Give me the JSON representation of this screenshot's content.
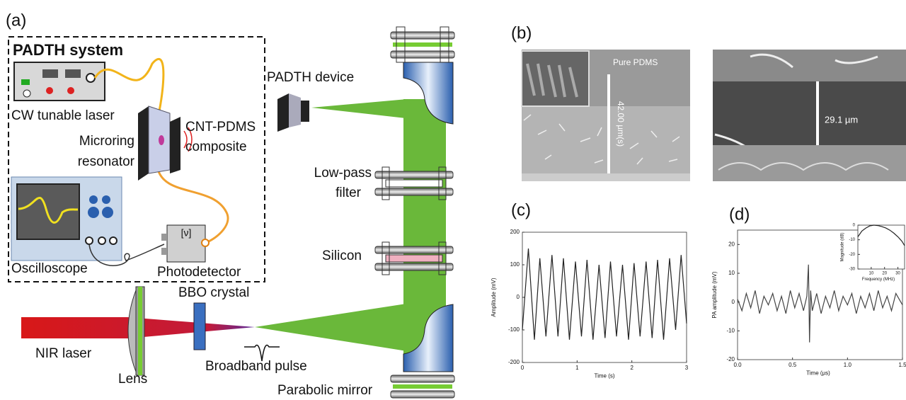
{
  "figure": {
    "panel_a": {
      "label": "(a)",
      "system_title": "PADTH system",
      "cw_laser": "CW tunable laser",
      "microring": [
        "Microring",
        "resonator"
      ],
      "composite": [
        "CNT-PDMS",
        "composite"
      ],
      "oscilloscope": "Oscilloscope",
      "photodetector": "Photodetector",
      "detector_symbol": "[ν]",
      "device": "PADTH device",
      "filter": [
        "Low-pass",
        "filter"
      ],
      "silicon": "Silicon",
      "crystal": "BBO crystal",
      "laser": "NIR laser",
      "lens": "Lens",
      "pulse": "Broadband pulse",
      "mirror": "Parabolic mirror"
    },
    "panel_b": {
      "label": "(b)",
      "sample": "Pure PDMS",
      "thickness_1": "42.00 µm(s)",
      "thickness_2": "29.1 µm"
    },
    "panel_c": {
      "label": "(c)"
    },
    "panel_d": {
      "label": "(d)"
    }
  },
  "chart_data": [
    {
      "type": "line",
      "x_label": "Time (s)",
      "y_label": "Amplitude (mV)",
      "color": "#222",
      "x": [
        0,
        0.11,
        0.22,
        0.32,
        0.43,
        0.54,
        0.65,
        0.75,
        0.86,
        0.97,
        1.08,
        1.18,
        1.29,
        1.4,
        1.51,
        1.61,
        1.72,
        1.83,
        1.94,
        2.04,
        2.15,
        2.26,
        2.37,
        2.47,
        2.58,
        2.69,
        2.8,
        2.9,
        3
      ],
      "values": [
        -100,
        150,
        -130,
        120,
        -120,
        130,
        -120,
        120,
        -130,
        110,
        -120,
        115,
        -130,
        100,
        -125,
        110,
        -120,
        100,
        -130,
        105,
        -120,
        110,
        -125,
        115,
        -130,
        120,
        -100,
        130,
        -80
      ],
      "xlim": [
        0,
        3
      ],
      "ylim": [
        -200,
        200
      ],
      "xticks": [
        0,
        1,
        2,
        3
      ],
      "yticks": [
        -200,
        -100,
        0,
        100,
        200
      ]
    },
    {
      "type": "line",
      "x_label": "Time (μs)",
      "y_label": "PA amplitude (mV)",
      "color": "#444",
      "x": [
        0,
        0.04,
        0.08,
        0.12,
        0.16,
        0.2,
        0.24,
        0.28,
        0.32,
        0.36,
        0.4,
        0.44,
        0.48,
        0.52,
        0.56,
        0.6,
        0.63,
        0.645,
        0.655,
        0.665,
        0.68,
        0.72,
        0.76,
        0.8,
        0.84,
        0.88,
        0.92,
        0.96,
        1,
        1.04,
        1.08,
        1.12,
        1.16,
        1.2,
        1.24,
        1.28,
        1.32,
        1.36,
        1.4,
        1.44,
        1.5
      ],
      "values": [
        1,
        -3,
        3,
        -2,
        4,
        -4,
        2,
        -1,
        3,
        -3,
        2,
        -4,
        4,
        -2,
        3,
        -3,
        2,
        13,
        -14,
        4,
        -3,
        3,
        -4,
        2,
        -2,
        4,
        -3,
        2,
        -1,
        3,
        -4,
        2,
        -2,
        3,
        -3,
        4,
        -2,
        2,
        -3,
        3,
        -1
      ],
      "xlim": [
        0,
        1.5
      ],
      "ylim": [
        -20,
        25
      ],
      "xticks": [
        {
          "value": 0,
          "label": "0.0"
        },
        {
          "value": 0.5,
          "label": "0.5"
        },
        {
          "value": 1,
          "label": "1.0"
        },
        {
          "value": 1.5,
          "label": "1.5"
        }
      ],
      "yticks": [
        -20,
        -10,
        0,
        10,
        20
      ],
      "inset": {
        "x_label": "Frequency (MHz)",
        "y_label": "Magnitude (dB)",
        "x": [
          0,
          3,
          6,
          9,
          12,
          15,
          18,
          21,
          24,
          27,
          30,
          33,
          35
        ],
        "values": [
          -8,
          -4,
          -2,
          -0.5,
          0,
          -0.3,
          -1,
          -2,
          -3.5,
          -5.5,
          -8,
          -11,
          -14
        ],
        "xlim": [
          0,
          35
        ],
        "ylim": [
          -30,
          0
        ],
        "xticks": [
          10,
          20,
          30
        ],
        "yticks": [
          -30,
          -20,
          -10,
          0
        ]
      }
    }
  ]
}
